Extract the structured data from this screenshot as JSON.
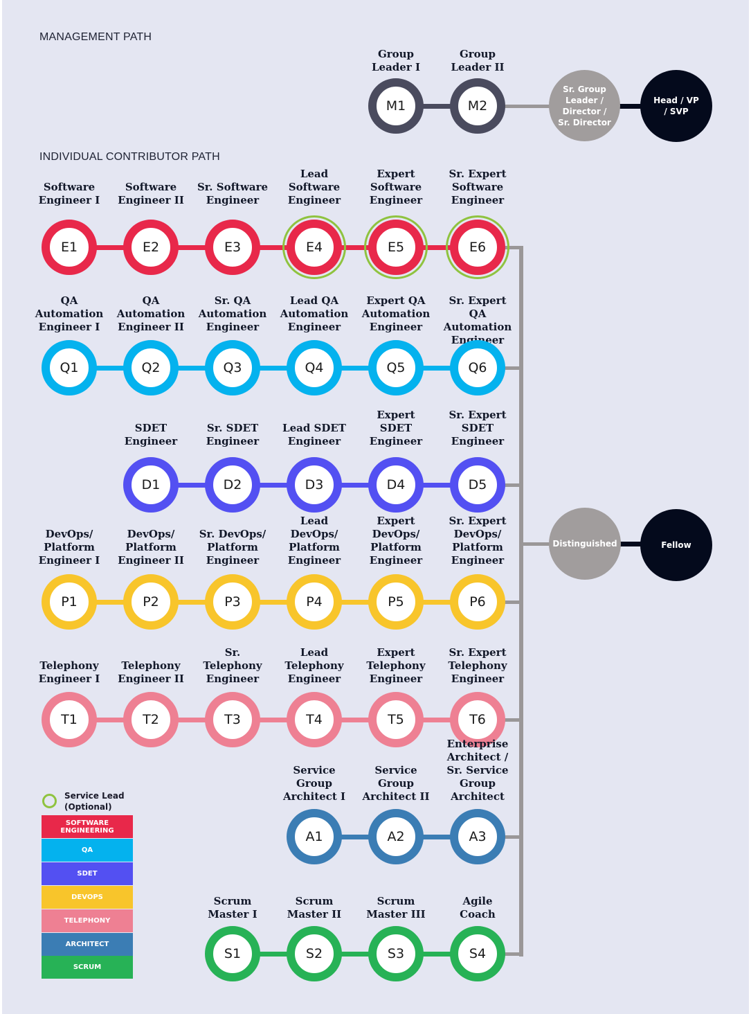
{
  "colors": {
    "background": "#e4e6f2",
    "manager": "#4a4b5e",
    "software_engineering": "#e8284a",
    "qa": "#04b2ee",
    "sdet": "#5350f2",
    "devops": "#f8c52b",
    "telephony": "#ee8093",
    "architect": "#3b7db4",
    "scrum": "#27b256",
    "service_lead_ring": "#8fc33f",
    "connector_gray": "#9a9798",
    "senior_gray": "#a19d9d",
    "dark_node": "#040a1c"
  },
  "management": {
    "title": "MANAGEMENT PATH",
    "nodes": [
      {
        "code": "M1",
        "label": "Group\nLeader I"
      },
      {
        "code": "M2",
        "label": "Group\nLeader II"
      }
    ],
    "senior": "Sr. Group\nLeader /\nDirector /\nSr. Director",
    "head": "Head / VP\n/ SVP"
  },
  "ic": {
    "title": "INDIVIDUAL CONTRIBUTOR PATH",
    "rows": [
      {
        "track": "software_engineering",
        "nodes": [
          {
            "code": "E1",
            "label": "Software\nEngineer I"
          },
          {
            "code": "E2",
            "label": "Software\nEngineer II"
          },
          {
            "code": "E3",
            "label": "Sr. Software\nEngineer"
          },
          {
            "code": "E4",
            "label": "Lead\nSoftware\nEngineer"
          },
          {
            "code": "E5",
            "label": "Expert\nSoftware\nEngineer"
          },
          {
            "code": "E6",
            "label": "Sr. Expert\nSoftware\nEngineer"
          }
        ]
      },
      {
        "track": "qa",
        "nodes": [
          {
            "code": "Q1",
            "label": "QA\nAutomation\nEngineer I"
          },
          {
            "code": "Q2",
            "label": "QA\nAutomation\nEngineer II"
          },
          {
            "code": "Q3",
            "label": "Sr. QA\nAutomation\nEngineer"
          },
          {
            "code": "Q4",
            "label": "Lead QA\nAutomation\nEngineer"
          },
          {
            "code": "Q5",
            "label": "Expert QA\nAutomation\nEngineer"
          },
          {
            "code": "Q6",
            "label": "Sr. Expert\nQA Automation\nEngineer"
          }
        ]
      },
      {
        "track": "sdet",
        "nodes": [
          {
            "code": "D1",
            "label": "SDET\nEngineer"
          },
          {
            "code": "D2",
            "label": "Sr. SDET\nEngineer"
          },
          {
            "code": "D3",
            "label": "Lead SDET\nEngineer"
          },
          {
            "code": "D4",
            "label": "Expert\nSDET\nEngineer"
          },
          {
            "code": "D5",
            "label": "Sr. Expert\nSDET\nEngineer"
          }
        ]
      },
      {
        "track": "devops",
        "nodes": [
          {
            "code": "P1",
            "label": "DevOps/\nPlatform\nEngineer I"
          },
          {
            "code": "P2",
            "label": "DevOps/\nPlatform\nEngineer II"
          },
          {
            "code": "P3",
            "label": "Sr. DevOps/\nPlatform\nEngineer"
          },
          {
            "code": "P4",
            "label": "Lead\nDevOps/\nPlatform\nEngineer"
          },
          {
            "code": "P5",
            "label": "Expert\nDevOps/\nPlatform\nEngineer"
          },
          {
            "code": "P6",
            "label": "Sr. Expert\nDevOps/\nPlatform\nEngineer"
          }
        ]
      },
      {
        "track": "telephony",
        "nodes": [
          {
            "code": "T1",
            "label": "Telephony\nEngineer I"
          },
          {
            "code": "T2",
            "label": "Telephony\nEngineer II"
          },
          {
            "code": "T3",
            "label": "Sr.\nTelephony\nEngineer"
          },
          {
            "code": "T4",
            "label": "Lead\nTelephony\nEngineer"
          },
          {
            "code": "T5",
            "label": "Expert\nTelephony\nEngineer"
          },
          {
            "code": "T6",
            "label": "Sr. Expert\nTelephony\nEngineer"
          }
        ]
      },
      {
        "track": "architect",
        "nodes": [
          {
            "code": "A1",
            "label": "Service\nGroup\nArchitect I"
          },
          {
            "code": "A2",
            "label": "Service\nGroup\nArchitect II"
          },
          {
            "code": "A3",
            "label": "Enterprise\nArchitect /\nSr. Service\nGroup\nArchitect"
          }
        ]
      },
      {
        "track": "scrum",
        "nodes": [
          {
            "code": "S1",
            "label": "Scrum\nMaster I"
          },
          {
            "code": "S2",
            "label": "Scrum\nMaster II"
          },
          {
            "code": "S3",
            "label": "Scrum\nMaster III"
          },
          {
            "code": "S4",
            "label": "Agile\nCoach"
          }
        ]
      }
    ],
    "service_lead_codes": [
      "E4",
      "E5",
      "E6"
    ],
    "distinguished": "Distinguished",
    "fellow": "Fellow"
  },
  "legend": {
    "service_lead": "Service Lead\n(Optional)",
    "items": [
      {
        "track": "software_engineering",
        "label": "SOFTWARE\nENGINEERING"
      },
      {
        "track": "qa",
        "label": "QA"
      },
      {
        "track": "sdet",
        "label": "SDET"
      },
      {
        "track": "devops",
        "label": "DEVOPS"
      },
      {
        "track": "telephony",
        "label": "TELEPHONY"
      },
      {
        "track": "architect",
        "label": "ARCHITECT"
      },
      {
        "track": "scrum",
        "label": "SCRUM"
      }
    ]
  }
}
